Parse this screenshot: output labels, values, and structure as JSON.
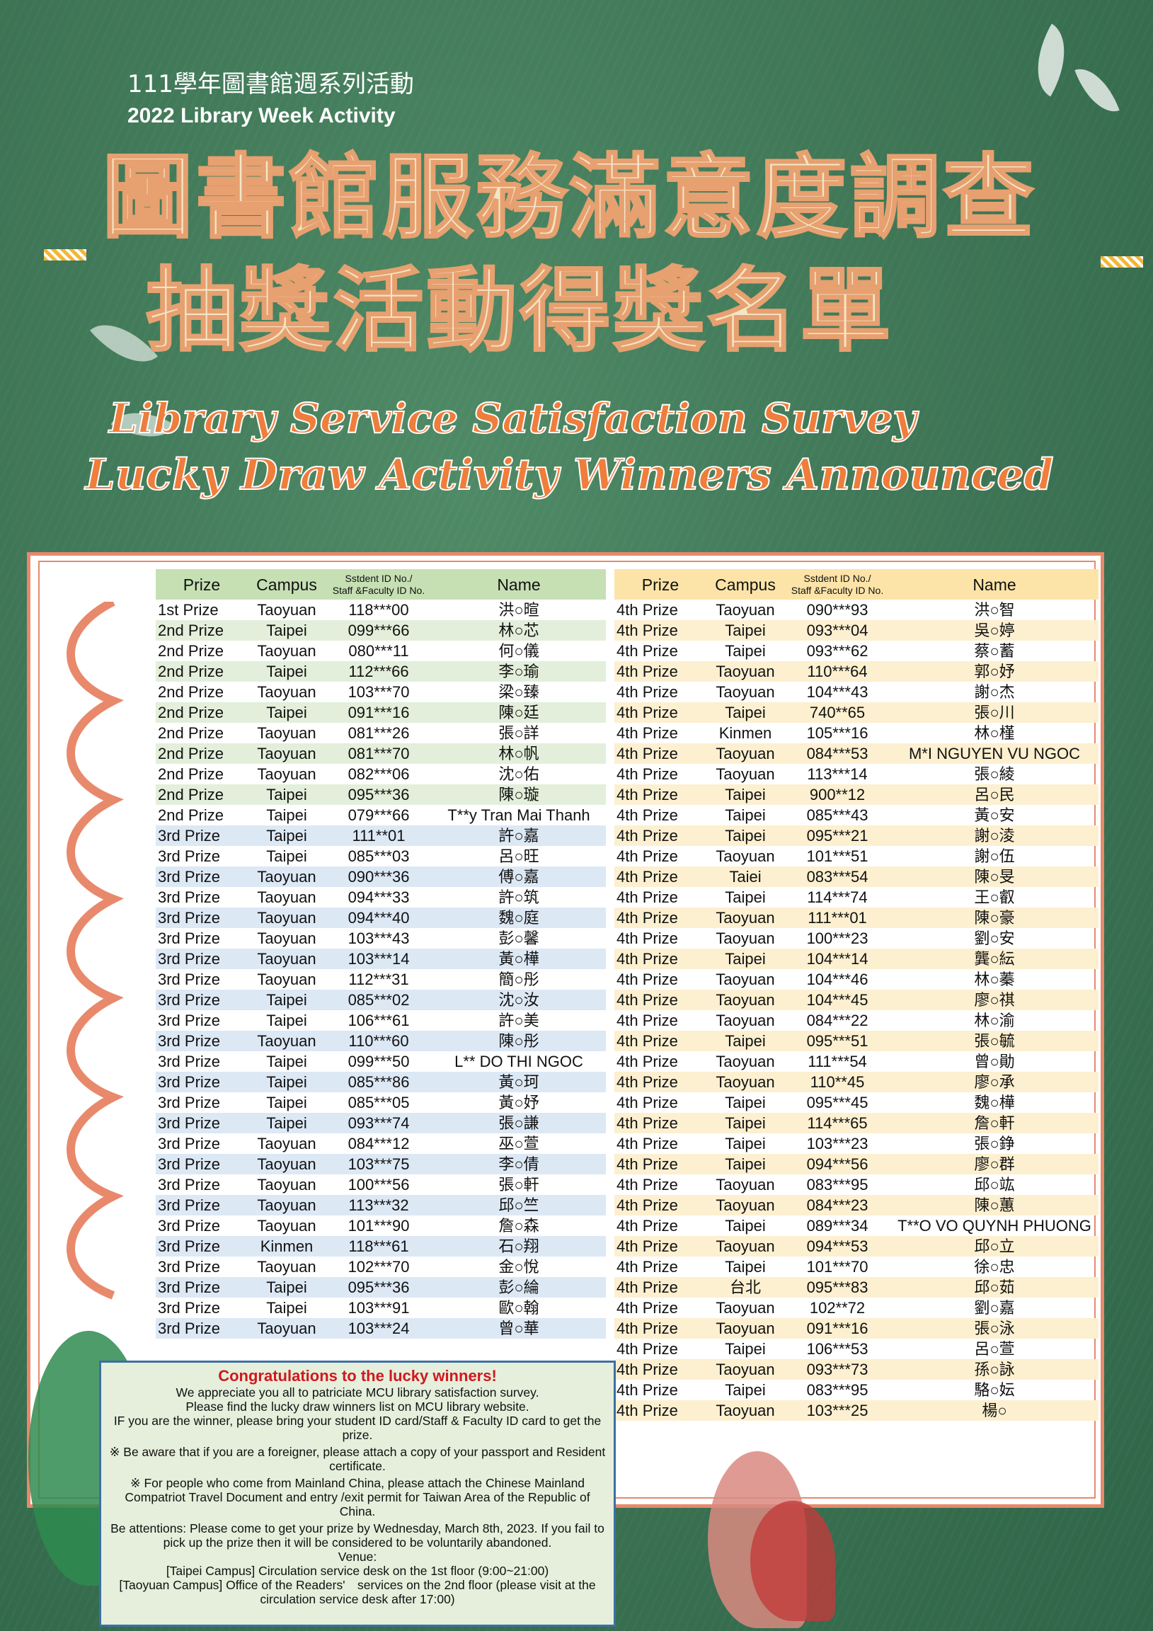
{
  "header": {
    "subtitle_zh": "111學年圖書館週系列活動",
    "subtitle_en": "2022 Library Week Activity",
    "title_zh_line1": "圖書館服務滿意度調查",
    "title_zh_line2": "抽獎活動得獎名單",
    "title_en_line1": "Library Service Satisfaction Survey",
    "title_en_line2": "Lucky Draw Activity Winners Announced"
  },
  "colors": {
    "background": "#3f7757",
    "title_fill": "#f3e6c6",
    "title_en": "#ef7d3c",
    "border": "#e8896c",
    "left_header": "#c6e0b4",
    "right_header": "#fce4a8",
    "congrats": "#d0181e"
  },
  "columns": {
    "prize": "Prize",
    "campus": "Campus",
    "id_line1": "Sstdent ID No./",
    "id_line2": "Staff &Faculty ID No.",
    "name": "Name"
  },
  "left_rows": [
    [
      "1st Prize",
      "Taoyuan",
      "118***00",
      "洪○暄"
    ],
    [
      "2nd Prize",
      "Taipei",
      "099***66",
      "林○芯"
    ],
    [
      "2nd Prize",
      "Taoyuan",
      "080***11",
      "何○儀"
    ],
    [
      "2nd Prize",
      "Taipei",
      "112***66",
      "李○瑜"
    ],
    [
      "2nd Prize",
      "Taoyuan",
      "103***70",
      "梁○臻"
    ],
    [
      "2nd Prize",
      "Taipei",
      "091***16",
      "陳○廷"
    ],
    [
      "2nd Prize",
      "Taoyuan",
      "081***26",
      "張○詳"
    ],
    [
      "2nd Prize",
      "Taoyuan",
      "081***70",
      "林○帆"
    ],
    [
      "2nd Prize",
      "Taoyuan",
      "082***06",
      "沈○佑"
    ],
    [
      "2nd Prize",
      "Taipei",
      "095***36",
      "陳○璇"
    ],
    [
      "2nd Prize",
      "Taipei",
      "079***66",
      "T**y Tran Mai Thanh"
    ],
    [
      "3rd Prize",
      "Taipei",
      "111**01",
      "許○嘉"
    ],
    [
      "3rd Prize",
      "Taipei",
      "085***03",
      "呂○旺"
    ],
    [
      "3rd Prize",
      "Taoyuan",
      "090***36",
      "傅○嘉"
    ],
    [
      "3rd Prize",
      "Taoyuan",
      "094***33",
      "許○筑"
    ],
    [
      "3rd Prize",
      "Taoyuan",
      "094***40",
      "魏○庭"
    ],
    [
      "3rd Prize",
      "Taoyuan",
      "103***43",
      "彭○馨"
    ],
    [
      "3rd Prize",
      "Taoyuan",
      "103***14",
      "黃○樺"
    ],
    [
      "3rd Prize",
      "Taoyuan",
      "112***31",
      "簡○彤"
    ],
    [
      "3rd Prize",
      "Taipei",
      "085***02",
      "沈○汝"
    ],
    [
      "3rd Prize",
      "Taipei",
      "106***61",
      "許○美"
    ],
    [
      "3rd Prize",
      "Taoyuan",
      "110***60",
      "陳○彤"
    ],
    [
      "3rd Prize",
      "Taipei",
      "099***50",
      "L** DO THI NGOC"
    ],
    [
      "3rd Prize",
      "Taipei",
      "085***86",
      "黃○珂"
    ],
    [
      "3rd Prize",
      "Taipei",
      "085***05",
      "黃○妤"
    ],
    [
      "3rd Prize",
      "Taipei",
      "093***74",
      "張○謙"
    ],
    [
      "3rd Prize",
      "Taoyuan",
      "084***12",
      "巫○萱"
    ],
    [
      "3rd Prize",
      "Taoyuan",
      "103***75",
      "李○倩"
    ],
    [
      "3rd Prize",
      "Taoyuan",
      "100***56",
      "張○軒"
    ],
    [
      "3rd Prize",
      "Taoyuan",
      "113***32",
      "邱○竺"
    ],
    [
      "3rd Prize",
      "Taoyuan",
      "101***90",
      "詹○森"
    ],
    [
      "3rd Prize",
      "Kinmen",
      "118***61",
      "石○翔"
    ],
    [
      "3rd Prize",
      "Taoyuan",
      "102***70",
      "金○悅"
    ],
    [
      "3rd Prize",
      "Taipei",
      "095***36",
      "彭○綸"
    ],
    [
      "3rd Prize",
      "Taipei",
      "103***91",
      "歐○翰"
    ],
    [
      "3rd Prize",
      "Taoyuan",
      "103***24",
      "曾○華"
    ]
  ],
  "right_rows": [
    [
      "4th Prize",
      "Taoyuan",
      "090***93",
      "洪○智"
    ],
    [
      "4th Prize",
      "Taipei",
      "093***04",
      "吳○婷"
    ],
    [
      "4th Prize",
      "Taipei",
      "093***62",
      "蔡○蓄"
    ],
    [
      "4th Prize",
      "Taoyuan",
      "110***64",
      "郭○妤"
    ],
    [
      "4th Prize",
      "Taoyuan",
      "104***43",
      "謝○杰"
    ],
    [
      "4th Prize",
      "Taipei",
      "740**65",
      "張○川"
    ],
    [
      "4th Prize",
      "Kinmen",
      "105***16",
      "林○槿"
    ],
    [
      "4th Prize",
      "Taoyuan",
      "084***53",
      "M*I NGUYEN VU NGOC"
    ],
    [
      "4th Prize",
      "Taoyuan",
      "113***14",
      "張○綾"
    ],
    [
      "4th Prize",
      "Taipei",
      "900**12",
      "呂○民"
    ],
    [
      "4th Prize",
      "Taipei",
      "085***43",
      "黃○安"
    ],
    [
      "4th Prize",
      "Taipei",
      "095***21",
      "謝○淩"
    ],
    [
      "4th Prize",
      "Taoyuan",
      "101***51",
      "謝○伍"
    ],
    [
      "4th Prize",
      "Taiei",
      "083***54",
      "陳○旻"
    ],
    [
      "4th Prize",
      "Taipei",
      "114***74",
      "王○叡"
    ],
    [
      "4th Prize",
      "Taoyuan",
      "111***01",
      "陳○豪"
    ],
    [
      "4th Prize",
      "Taoyuan",
      "100***23",
      "劉○安"
    ],
    [
      "4th Prize",
      "Taipei",
      "104***14",
      "龔○紜"
    ],
    [
      "4th Prize",
      "Taoyuan",
      "104***46",
      "林○蓁"
    ],
    [
      "4th Prize",
      "Taoyuan",
      "104***45",
      "廖○祺"
    ],
    [
      "4th Prize",
      "Taoyuan",
      "084***22",
      "林○渝"
    ],
    [
      "4th Prize",
      "Taipei",
      "095***51",
      "張○毓"
    ],
    [
      "4th Prize",
      "Taoyuan",
      "111***54",
      "曾○勛"
    ],
    [
      "4th Prize",
      "Taoyuan",
      "110**45",
      "廖○承"
    ],
    [
      "4th Prize",
      "Taipei",
      "095***45",
      "魏○樺"
    ],
    [
      "4th Prize",
      "Taipei",
      "114***65",
      "詹○軒"
    ],
    [
      "4th Prize",
      "Taipei",
      "103***23",
      "張○錚"
    ],
    [
      "4th Prize",
      "Taipei",
      "094***56",
      "廖○群"
    ],
    [
      "4th Prize",
      "Taoyuan",
      "083***95",
      "邱○竑"
    ],
    [
      "4th Prize",
      "Taoyuan",
      "084***23",
      "陳○蕙"
    ],
    [
      "4th Prize",
      "Taipei",
      "089***34",
      "T**O VO QUYNH PHUONG"
    ],
    [
      "4th Prize",
      "Taoyuan",
      "094***53",
      "邱○立"
    ],
    [
      "4th Prize",
      "Taipei",
      "101***70",
      "徐○忠"
    ],
    [
      "4th Prize",
      "台北",
      "095***83",
      "邱○茹"
    ],
    [
      "4th Prize",
      "Taoyuan",
      "102**72",
      "劉○嘉"
    ],
    [
      "4th Prize",
      "Taoyuan",
      "091***16",
      "張○泳"
    ],
    [
      "4th Prize",
      "Taipei",
      "106***53",
      "呂○萱"
    ],
    [
      "4th Prize",
      "Taoyuan",
      "093***73",
      "孫○詠"
    ],
    [
      "4th Prize",
      "Taipei",
      "083***95",
      "駱○妘"
    ],
    [
      "4th Prize",
      "Taoyuan",
      "103***25",
      "楊○"
    ]
  ],
  "notice": {
    "heading": "Congratulations to the lucky winners!",
    "lines": [
      "We appreciate you all to patriciate MCU library satisfaction survey.",
      "Please find the lucky draw winners list on MCU library website.",
      "IF you are the winner, please bring your student ID card/Staff & Faculty ID card to get the prize.",
      "※ Be aware that if you are a foreigner, please attach a copy of your passport and Resident certificate.",
      "※ For people who come from Mainland China, please attach the Chinese Mainland Compatriot Travel Document and entry /exit permit for Taiwan Area of the Republic of China.",
      "Be attentions: Please come to get your prize by Wednesday, March 8th, 2023. If you fail to pick up the prize then it will be considered to be voluntarily abandoned.",
      "Venue:",
      "[Taipei Campus] Circulation service desk on the 1st floor (9:00~21:00)",
      "[Taoyuan Campus] Office of the Readers'　services on the 2nd floor (please visit at the circulation service desk after 17:00)"
    ]
  }
}
